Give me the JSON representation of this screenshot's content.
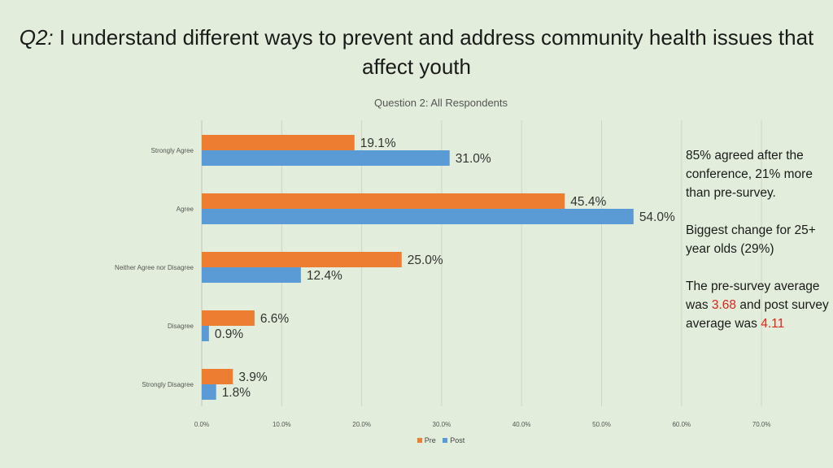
{
  "slide": {
    "title_prefix": "Q2:",
    "title_text": " I understand different ways to prevent and address community health issues that affect youth"
  },
  "notes": {
    "p1": "85% agreed after the conference, 21% more than pre-survey.",
    "p2": "Biggest change for 25+ year olds (29%)",
    "p3_a": "The pre-survey average was ",
    "p3_v1": "3.68",
    "p3_b": " and post survey average was ",
    "p3_v2": "4.11"
  },
  "colors": {
    "pre": "#ed7d31",
    "post": "#5b9bd5",
    "highlight": "#e0241b",
    "grid": "#cdd6c6"
  },
  "chart_data": {
    "type": "bar",
    "orientation": "horizontal",
    "title": "Question 2: All Respondents",
    "categories": [
      "Strongly Agree",
      "Agree",
      "Neither Agree nor Disagree",
      "Disagree",
      "Strongly Disagree"
    ],
    "series": [
      {
        "name": "Pre",
        "values": [
          19.1,
          45.4,
          25.0,
          6.6,
          3.9
        ],
        "labels": [
          "19.1%",
          "45.4%",
          "25.0%",
          "6.6%",
          "3.9%"
        ]
      },
      {
        "name": "Post",
        "values": [
          31.0,
          54.0,
          12.4,
          0.9,
          1.8
        ],
        "labels": [
          "31.0%",
          "54.0%",
          "12.4%",
          "0.9%",
          "1.8%"
        ]
      }
    ],
    "xlim": [
      0,
      70
    ],
    "xticks": [
      "0.0%",
      "10.0%",
      "20.0%",
      "30.0%",
      "40.0%",
      "50.0%",
      "60.0%",
      "70.0%"
    ],
    "grid": true,
    "legend_position": "bottom"
  }
}
